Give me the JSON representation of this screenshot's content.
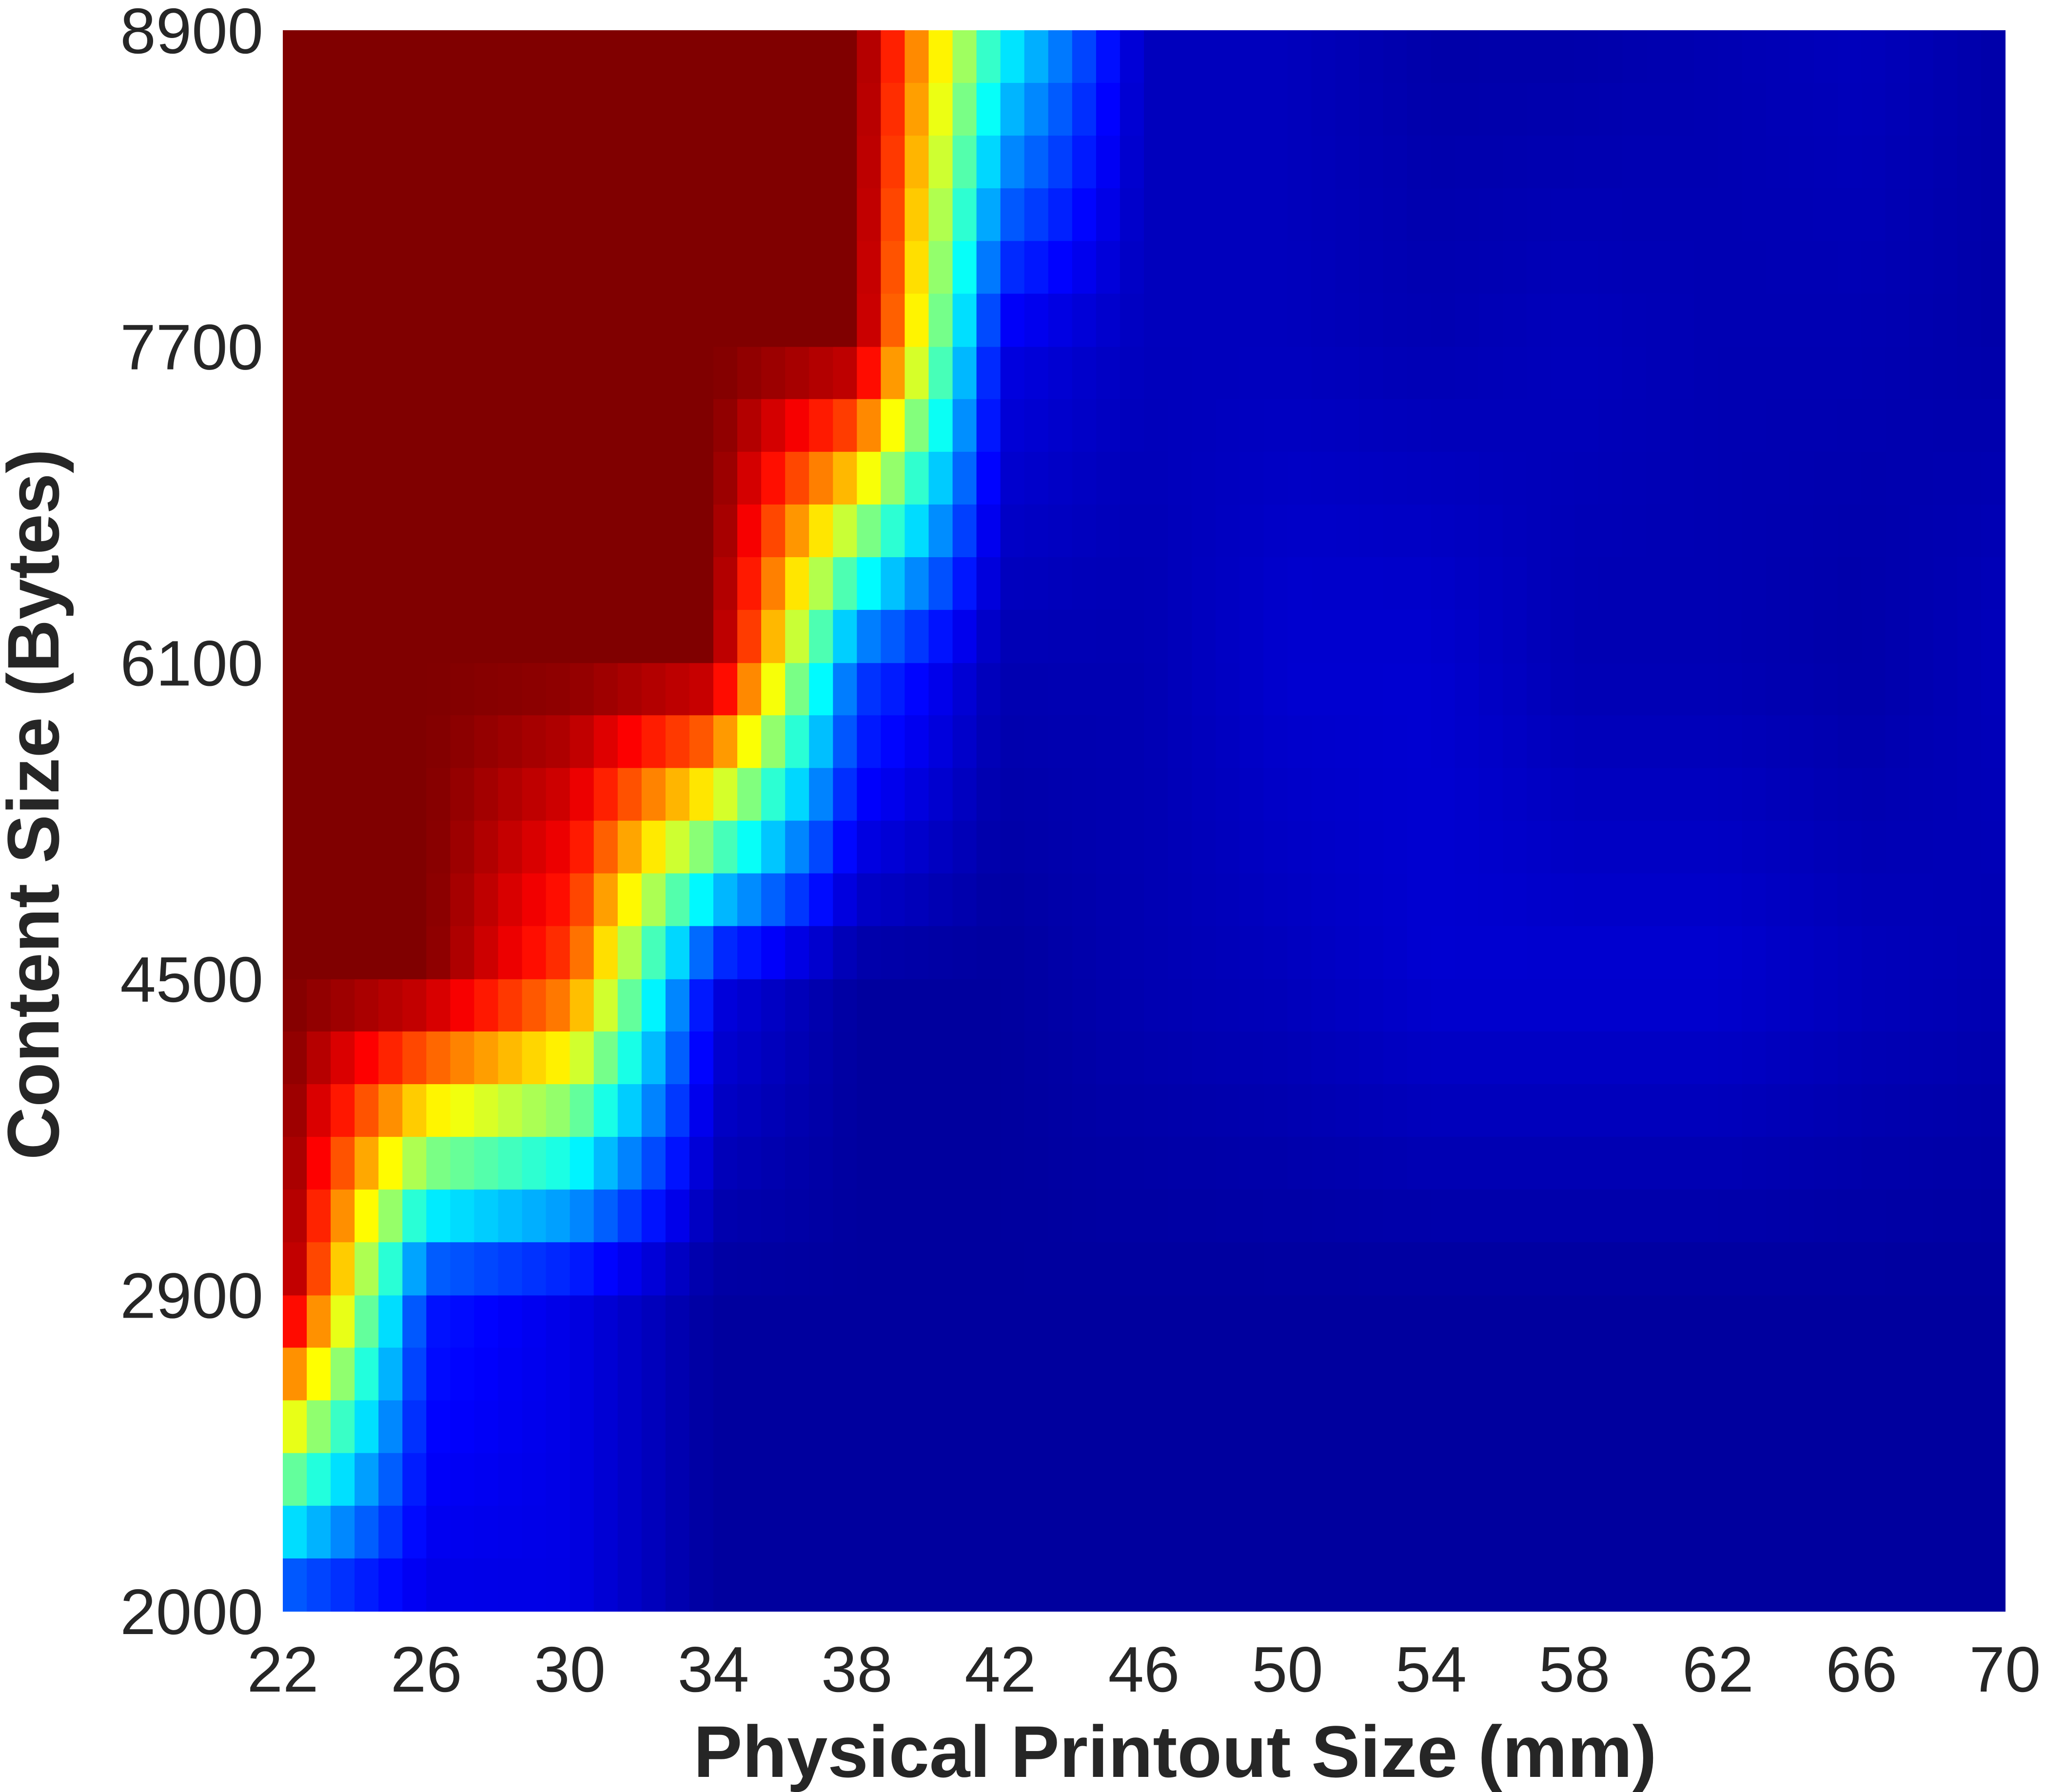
{
  "chart_data": {
    "type": "heatmap",
    "title": "",
    "xlabel": "Physical Printout Size (mm)",
    "ylabel": "Content Size (Bytes)",
    "x_ticks": [
      "22",
      "26",
      "30",
      "34",
      "38",
      "42",
      "46",
      "50",
      "54",
      "58",
      "62",
      "66",
      "70"
    ],
    "y_ticks": [
      "2000",
      "2900",
      "4500",
      "6100",
      "7700",
      "8900"
    ],
    "xlim": [
      22,
      70
    ],
    "ylim": [
      2000,
      8900
    ],
    "colormap": "jet",
    "grid": false,
    "x": [
      22,
      26,
      30,
      34,
      38,
      42,
      46,
      50,
      54,
      58,
      62,
      66,
      70
    ],
    "y": [
      2000,
      2900,
      4500,
      6100,
      7700,
      8900
    ],
    "z": [
      [
        0.15,
        0.1,
        0.1,
        0.03,
        0.03,
        0.03,
        0.03,
        0.03,
        0.03,
        0.03,
        0.03,
        0.03,
        0.03
      ],
      [
        1.0,
        0.15,
        0.1,
        0.03,
        0.03,
        0.03,
        0.03,
        0.03,
        0.03,
        0.03,
        0.03,
        0.03,
        0.03
      ],
      [
        1.0,
        1.0,
        0.8,
        0.1,
        0.03,
        0.03,
        0.05,
        0.06,
        0.08,
        0.08,
        0.08,
        0.06,
        0.05
      ],
      [
        1.0,
        1.0,
        1.0,
        1.0,
        0.2,
        0.05,
        0.05,
        0.08,
        0.08,
        0.05,
        0.05,
        0.04,
        0.06
      ],
      [
        1.0,
        1.0,
        1.0,
        1.0,
        1.0,
        0.1,
        0.06,
        0.06,
        0.05,
        0.06,
        0.05,
        0.05,
        0.04
      ],
      [
        1.0,
        1.0,
        1.0,
        1.0,
        1.0,
        0.4,
        0.06,
        0.06,
        0.04,
        0.04,
        0.05,
        0.06,
        0.04
      ]
    ],
    "colors": {
      "dark_red": "#800000",
      "dark_blue": "#00008b",
      "text": "#262626"
    }
  }
}
